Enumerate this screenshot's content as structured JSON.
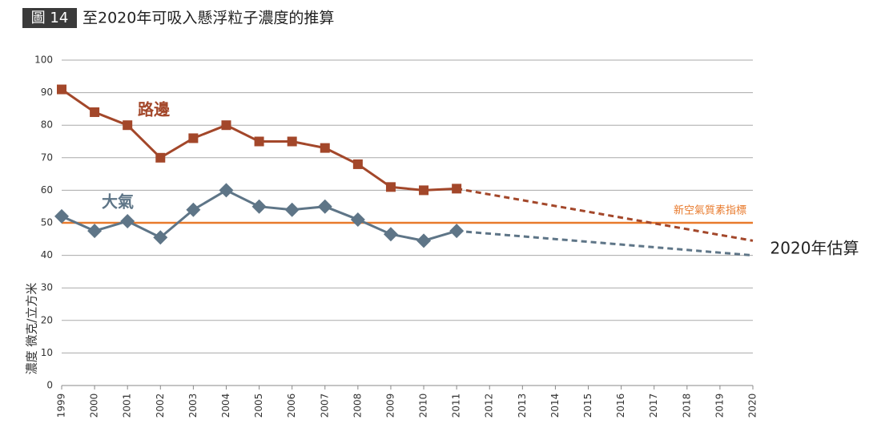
{
  "chart_data": {
    "type": "line",
    "badge": "圖 14",
    "title": "至2020年可吸入懸浮粒子濃度的推算",
    "y_label": "濃度 微克/立方米",
    "x": [
      1999,
      2000,
      2001,
      2002,
      2003,
      2004,
      2005,
      2006,
      2007,
      2008,
      2009,
      2010,
      2011,
      2012,
      2013,
      2014,
      2015,
      2016,
      2017,
      2018,
      2019,
      2020
    ],
    "xlim": [
      1999,
      2020
    ],
    "ylim": [
      0,
      100
    ],
    "yticks": [
      0,
      10,
      20,
      30,
      40,
      50,
      60,
      70,
      80,
      90,
      100
    ],
    "grid": true,
    "series": [
      {
        "name": "路邊",
        "color": "#a3472a",
        "marker": "square",
        "values": [
          91,
          84,
          80,
          70,
          76,
          80,
          75,
          75,
          73,
          68,
          61,
          60,
          60.5,
          null,
          null,
          null,
          null,
          null,
          null,
          null,
          null,
          null
        ],
        "projection_2020": 44.5
      },
      {
        "name": "大氣",
        "color": "#5e7587",
        "marker": "diamond",
        "values": [
          52,
          47.5,
          50.5,
          45.5,
          54,
          60,
          55,
          54,
          55,
          51,
          46.5,
          44.5,
          47.5,
          null,
          null,
          null,
          null,
          null,
          null,
          null,
          null,
          null
        ],
        "projection_2020": 40
      }
    ],
    "projection_label": "2020年估算",
    "reference_line": {
      "value": 50,
      "label": "新空氣質素指標",
      "color": "#e87a2c"
    }
  }
}
